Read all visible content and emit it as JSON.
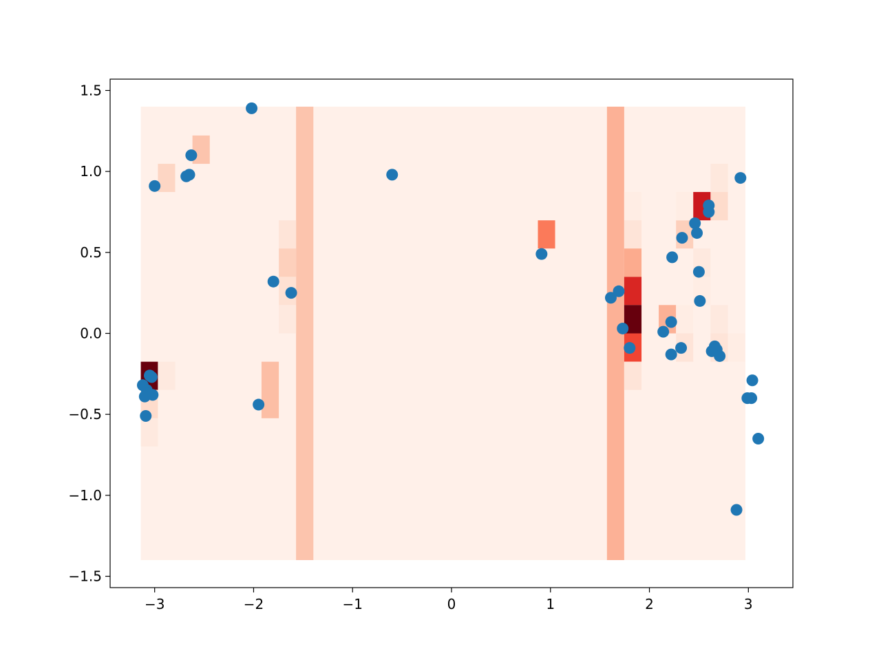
{
  "chart_data": {
    "type": "heatmap",
    "title": "",
    "xlabel": "",
    "ylabel": "",
    "xlim": [
      -3.45,
      3.45
    ],
    "ylim": [
      -1.57,
      1.57
    ],
    "xticks": [
      -3,
      -2,
      -1,
      0,
      1,
      2,
      3
    ],
    "xtick_labels": [
      "−3",
      "−2",
      "−1",
      "0",
      "1",
      "2",
      "3"
    ],
    "yticks": [
      -1.5,
      -1.0,
      -0.5,
      0.0,
      0.5,
      1.0,
      1.5
    ],
    "ytick_labels": [
      "−1.5",
      "−1.0",
      "−0.5",
      "0.0",
      "0.5",
      "1.0",
      "1.5"
    ],
    "grid": false,
    "colormap": "Reds",
    "heatmap": {
      "x_edges": [
        -3.14,
        2.97
      ],
      "y_edges": [
        -1.4,
        1.4
      ],
      "cell_width": 0.1745,
      "cell_height": 0.1745,
      "background_level": 0.03,
      "cells": [
        {
          "x0": -1.571,
          "x1": -1.396,
          "y0": -1.4,
          "y1": 1.4,
          "level": 0.22
        },
        {
          "x0": 1.571,
          "x1": 1.745,
          "y0": -1.4,
          "y1": 1.4,
          "level": 0.28
        },
        {
          "x0": -3.14,
          "x1": -2.967,
          "y0": -0.349,
          "y1": -0.175,
          "level": 1.0
        },
        {
          "x0": -3.14,
          "x1": -2.967,
          "y0": -0.524,
          "y1": -0.349,
          "level": 0.14
        },
        {
          "x0": -3.14,
          "x1": -2.967,
          "y0": -0.698,
          "y1": -0.524,
          "level": 0.07
        },
        {
          "x0": -2.967,
          "x1": -2.793,
          "y0": -0.349,
          "y1": -0.175,
          "level": 0.07
        },
        {
          "x0": -2.967,
          "x1": -2.793,
          "y0": 0.873,
          "y1": 1.047,
          "level": 0.16
        },
        {
          "x0": -2.618,
          "x1": -2.443,
          "y0": 1.047,
          "y1": 1.222,
          "level": 0.22
        },
        {
          "x0": -1.92,
          "x1": -1.745,
          "y0": -0.524,
          "y1": -0.175,
          "level": 0.24
        },
        {
          "x0": -1.745,
          "x1": -1.571,
          "y0": 0.524,
          "y1": 0.698,
          "level": 0.1
        },
        {
          "x0": -1.745,
          "x1": -1.571,
          "y0": 0.349,
          "y1": 0.524,
          "level": 0.18
        },
        {
          "x0": -1.745,
          "x1": -1.571,
          "y0": 0.175,
          "y1": 0.349,
          "level": 0.12
        },
        {
          "x0": -1.745,
          "x1": -1.571,
          "y0": 0.0,
          "y1": 0.175,
          "level": 0.07
        },
        {
          "x0": 0.873,
          "x1": 1.047,
          "y0": 0.524,
          "y1": 0.698,
          "level": 0.45
        },
        {
          "x0": 1.745,
          "x1": 1.92,
          "y0": 0.698,
          "y1": 0.873,
          "level": 0.05
        },
        {
          "x0": 1.745,
          "x1": 1.92,
          "y0": 0.524,
          "y1": 0.698,
          "level": 0.1
        },
        {
          "x0": 1.745,
          "x1": 1.92,
          "y0": 0.349,
          "y1": 0.524,
          "level": 0.3
        },
        {
          "x0": 1.745,
          "x1": 1.92,
          "y0": 0.175,
          "y1": 0.349,
          "level": 0.7
        },
        {
          "x0": 1.745,
          "x1": 1.92,
          "y0": 0.0,
          "y1": 0.175,
          "level": 1.0
        },
        {
          "x0": 1.745,
          "x1": 1.92,
          "y0": -0.175,
          "y1": 0.0,
          "level": 0.6
        },
        {
          "x0": 1.745,
          "x1": 1.92,
          "y0": -0.349,
          "y1": -0.175,
          "level": 0.1
        },
        {
          "x0": 2.094,
          "x1": 2.269,
          "y0": 0.0,
          "y1": 0.175,
          "level": 0.28
        },
        {
          "x0": 2.269,
          "x1": 2.443,
          "y0": 0.524,
          "y1": 0.698,
          "level": 0.18
        },
        {
          "x0": 2.269,
          "x1": 2.443,
          "y0": 0.698,
          "y1": 0.873,
          "level": 0.05
        },
        {
          "x0": 2.269,
          "x1": 2.443,
          "y0": 0.0,
          "y1": 0.175,
          "level": 0.05
        },
        {
          "x0": 2.269,
          "x1": 2.443,
          "y0": -0.175,
          "y1": 0.0,
          "level": 0.1
        },
        {
          "x0": 2.443,
          "x1": 2.618,
          "y0": 0.698,
          "y1": 0.873,
          "level": 0.75
        },
        {
          "x0": 2.443,
          "x1": 2.618,
          "y0": 0.349,
          "y1": 0.524,
          "level": 0.07
        },
        {
          "x0": 2.443,
          "x1": 2.618,
          "y0": 0.175,
          "y1": 0.349,
          "level": 0.05
        },
        {
          "x0": 2.618,
          "x1": 2.793,
          "y0": 0.873,
          "y1": 1.047,
          "level": 0.08
        },
        {
          "x0": 2.618,
          "x1": 2.793,
          "y0": 0.698,
          "y1": 0.873,
          "level": 0.14
        },
        {
          "x0": 2.618,
          "x1": 2.793,
          "y0": 0.0,
          "y1": 0.175,
          "level": 0.07
        },
        {
          "x0": 2.618,
          "x1": 2.793,
          "y0": -0.175,
          "y1": 0.0,
          "level": 0.1
        },
        {
          "x0": 2.793,
          "x1": 2.967,
          "y0": -0.175,
          "y1": 0.0,
          "level": 0.05
        }
      ]
    },
    "series": [
      {
        "type": "scatter",
        "color": "#1f77b4",
        "x": [
          -2.02,
          -2.63,
          -2.65,
          -2.68,
          -3.0,
          -1.8,
          -1.62,
          -1.95,
          -0.6,
          0.91,
          -3.12,
          -3.08,
          -3.05,
          -3.03,
          -3.02,
          -3.07,
          -3.1,
          -3.09,
          1.61,
          1.69,
          1.73,
          1.8,
          2.14,
          2.22,
          2.23,
          2.22,
          2.33,
          2.32,
          2.46,
          2.48,
          2.5,
          2.51,
          2.6,
          2.6,
          2.63,
          2.66,
          2.68,
          2.71,
          2.92,
          2.88,
          3.04,
          2.99,
          3.03,
          3.1
        ],
        "y": [
          1.39,
          1.1,
          0.98,
          0.97,
          0.91,
          0.32,
          0.25,
          -0.44,
          0.98,
          0.49,
          -0.32,
          -0.35,
          -0.26,
          -0.27,
          -0.38,
          -0.37,
          -0.39,
          -0.51,
          0.22,
          0.26,
          0.03,
          -0.09,
          0.01,
          0.07,
          0.47,
          -0.13,
          0.59,
          -0.09,
          0.68,
          0.62,
          0.38,
          0.2,
          0.79,
          0.75,
          -0.11,
          -0.08,
          -0.1,
          -0.14,
          0.96,
          -1.09,
          -0.29,
          -0.4,
          -0.4,
          -0.65
        ]
      }
    ]
  }
}
